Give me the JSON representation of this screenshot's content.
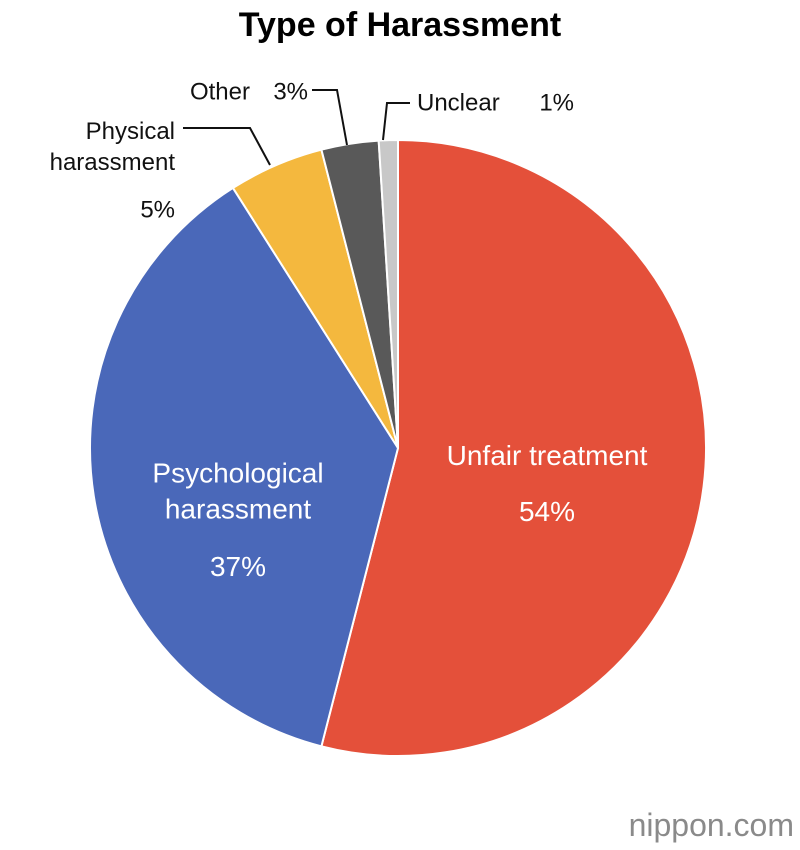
{
  "chart_data": {
    "type": "pie",
    "title": "Type of Harassment",
    "categories": [
      "Unfair treatment",
      "Psychological harassment",
      "Physical harassment",
      "Other",
      "Unclear"
    ],
    "values": [
      54,
      37,
      5,
      3,
      1
    ],
    "value_labels": [
      "54%",
      "37%",
      "5%",
      "3%",
      "1%"
    ],
    "colors": [
      "#e4503a",
      "#4a68b9",
      "#f4b83e",
      "#595959",
      "#c8c8c8"
    ]
  },
  "watermark": "nippon.com"
}
